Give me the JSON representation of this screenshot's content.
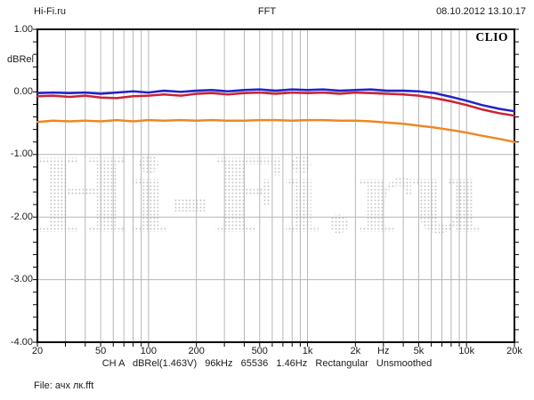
{
  "header": {
    "site": "Hi-Fi.ru",
    "title": "FFT",
    "datetime": "08.10.2012 13.10.17"
  },
  "brand": "CLIO",
  "watermark_text": "Hi-Fi.ru",
  "file_label": "File: ачх лк.fft",
  "status": {
    "parts": [
      "CH A",
      "dBRel(1.463V)",
      "96kHz",
      "65536",
      "1.46Hz",
      "Rectangular",
      "Unsmoothed"
    ]
  },
  "colors": {
    "grid": "#b6b6b6",
    "frame": "#000000",
    "watermark_dot": "#c4c4c4",
    "trace_blue": "#2222cc",
    "trace_red": "#cc2233",
    "trace_orange": "#ee8822"
  },
  "chart_data": {
    "type": "line",
    "title": "FFT",
    "ylabel": "dBRel",
    "xunit": "Hz",
    "x_scale": "log",
    "xlim": [
      20,
      20000
    ],
    "ylim": [
      -4.0,
      1.0
    ],
    "grid": true,
    "legend": "none",
    "y_ticks": [
      {
        "label": "1.00",
        "value": 1.0
      },
      {
        "label": "0.00",
        "value": 0.0
      },
      {
        "label": "-1.00",
        "value": -1.0
      },
      {
        "label": "-2.00",
        "value": -2.0
      },
      {
        "label": "-3.00",
        "value": -3.0
      },
      {
        "label": "-4.00",
        "value": -4.0
      }
    ],
    "x_ticks": [
      {
        "label": "20",
        "value": 20
      },
      {
        "label": "50",
        "value": 50
      },
      {
        "label": "100",
        "value": 100
      },
      {
        "label": "200",
        "value": 200
      },
      {
        "label": "500",
        "value": 500
      },
      {
        "label": "1k",
        "value": 1000
      },
      {
        "label": "2k",
        "value": 2000
      },
      {
        "label": "Hz",
        "value": 3000
      },
      {
        "label": "5k",
        "value": 5000
      },
      {
        "label": "10k",
        "value": 10000
      },
      {
        "label": "20k",
        "value": 20000
      }
    ],
    "x_gridlines": [
      30,
      40,
      50,
      60,
      70,
      80,
      90,
      100,
      200,
      300,
      400,
      500,
      600,
      700,
      800,
      900,
      1000,
      2000,
      3000,
      4000,
      5000,
      6000,
      7000,
      8000,
      9000,
      10000
    ],
    "y_gridlines": [
      0,
      -1,
      -2,
      -3
    ],
    "y_minor_tick_step": 0.2,
    "series": [
      {
        "name": "trace-orange",
        "color": "#ee8822",
        "points": [
          [
            20,
            -0.48
          ],
          [
            25,
            -0.46
          ],
          [
            32,
            -0.47
          ],
          [
            40,
            -0.46
          ],
          [
            50,
            -0.47
          ],
          [
            63,
            -0.45
          ],
          [
            80,
            -0.47
          ],
          [
            100,
            -0.45
          ],
          [
            125,
            -0.46
          ],
          [
            160,
            -0.45
          ],
          [
            200,
            -0.46
          ],
          [
            250,
            -0.45
          ],
          [
            315,
            -0.46
          ],
          [
            400,
            -0.46
          ],
          [
            500,
            -0.45
          ],
          [
            630,
            -0.45
          ],
          [
            800,
            -0.46
          ],
          [
            1000,
            -0.45
          ],
          [
            1250,
            -0.45
          ],
          [
            1600,
            -0.46
          ],
          [
            2000,
            -0.46
          ],
          [
            2500,
            -0.47
          ],
          [
            3150,
            -0.49
          ],
          [
            4000,
            -0.51
          ],
          [
            5000,
            -0.54
          ],
          [
            6300,
            -0.57
          ],
          [
            8000,
            -0.61
          ],
          [
            10000,
            -0.65
          ],
          [
            12500,
            -0.7
          ],
          [
            16000,
            -0.75
          ],
          [
            20000,
            -0.8
          ]
        ]
      },
      {
        "name": "trace-red",
        "color": "#cc2233",
        "points": [
          [
            20,
            -0.07
          ],
          [
            25,
            -0.06
          ],
          [
            32,
            -0.08
          ],
          [
            40,
            -0.06
          ],
          [
            50,
            -0.09
          ],
          [
            63,
            -0.1
          ],
          [
            80,
            -0.07
          ],
          [
            100,
            -0.06
          ],
          [
            125,
            -0.04
          ],
          [
            160,
            -0.06
          ],
          [
            200,
            -0.03
          ],
          [
            250,
            -0.02
          ],
          [
            315,
            -0.04
          ],
          [
            400,
            -0.02
          ],
          [
            500,
            -0.01
          ],
          [
            630,
            -0.03
          ],
          [
            800,
            -0.01
          ],
          [
            1000,
            -0.02
          ],
          [
            1250,
            -0.01
          ],
          [
            1600,
            -0.03
          ],
          [
            2000,
            -0.01
          ],
          [
            2500,
            -0.02
          ],
          [
            3150,
            -0.03
          ],
          [
            4000,
            -0.04
          ],
          [
            5000,
            -0.06
          ],
          [
            6300,
            -0.1
          ],
          [
            8000,
            -0.15
          ],
          [
            10000,
            -0.21
          ],
          [
            12500,
            -0.28
          ],
          [
            16000,
            -0.34
          ],
          [
            20000,
            -0.38
          ]
        ]
      },
      {
        "name": "trace-blue",
        "color": "#2222cc",
        "points": [
          [
            20,
            -0.02
          ],
          [
            25,
            -0.01
          ],
          [
            32,
            -0.02
          ],
          [
            40,
            -0.01
          ],
          [
            50,
            -0.03
          ],
          [
            63,
            -0.01
          ],
          [
            80,
            0.01
          ],
          [
            100,
            -0.01
          ],
          [
            125,
            0.02
          ],
          [
            160,
            0.0
          ],
          [
            200,
            0.02
          ],
          [
            250,
            0.03
          ],
          [
            315,
            0.01
          ],
          [
            400,
            0.03
          ],
          [
            500,
            0.04
          ],
          [
            630,
            0.02
          ],
          [
            800,
            0.04
          ],
          [
            1000,
            0.03
          ],
          [
            1250,
            0.04
          ],
          [
            1600,
            0.02
          ],
          [
            2000,
            0.03
          ],
          [
            2500,
            0.04
          ],
          [
            3150,
            0.02
          ],
          [
            4000,
            0.02
          ],
          [
            5000,
            0.01
          ],
          [
            6300,
            -0.02
          ],
          [
            8000,
            -0.08
          ],
          [
            10000,
            -0.14
          ],
          [
            12500,
            -0.21
          ],
          [
            16000,
            -0.27
          ],
          [
            20000,
            -0.31
          ]
        ]
      }
    ]
  }
}
